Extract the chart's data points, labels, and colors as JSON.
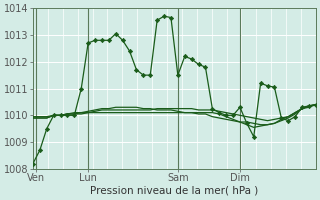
{
  "title": "",
  "xlabel": "Pression niveau de la mer( hPa )",
  "ylabel": "",
  "background_color": "#d4ece6",
  "grid_color": "#ffffff",
  "line_color": "#1a5c1a",
  "ylim": [
    1008,
    1014
  ],
  "yticks": [
    1008,
    1009,
    1010,
    1011,
    1012,
    1013,
    1014
  ],
  "xlim": [
    0,
    41
  ],
  "day_labels": [
    "Ven",
    "Lun",
    "Sam",
    "Dim"
  ],
  "day_positions": [
    0.5,
    8,
    21,
    30
  ],
  "series0_x": [
    0,
    1,
    2,
    3,
    4,
    5,
    6,
    7,
    8,
    9,
    10,
    11,
    12,
    13,
    14,
    15,
    16,
    17,
    18,
    19,
    20,
    21,
    22,
    23,
    24,
    25,
    26,
    27,
    28,
    29,
    30,
    31,
    32,
    33,
    34,
    35,
    36,
    37,
    38,
    39,
    40,
    41
  ],
  "series0_y": [
    1008.2,
    1008.7,
    1009.5,
    1010.0,
    1010.0,
    1010.0,
    1010.0,
    1011.0,
    1012.7,
    1012.8,
    1012.8,
    1012.8,
    1013.05,
    1012.8,
    1012.4,
    1011.7,
    1011.5,
    1011.5,
    1013.55,
    1013.7,
    1013.65,
    1011.5,
    1012.2,
    1012.1,
    1011.9,
    1011.8,
    1010.25,
    1010.1,
    1010.0,
    1010.0,
    1010.3,
    1009.7,
    1009.2,
    1011.2,
    1011.1,
    1011.05,
    1009.9,
    1009.8,
    1009.95,
    1010.3,
    1010.35,
    1010.4
  ],
  "series1_y": [
    1009.95,
    1009.95,
    1009.95,
    1010.0,
    1010.0,
    1010.05,
    1010.05,
    1010.05,
    1010.1,
    1010.15,
    1010.2,
    1010.2,
    1010.2,
    1010.2,
    1010.2,
    1010.2,
    1010.2,
    1010.2,
    1010.25,
    1010.25,
    1010.25,
    1010.25,
    1010.25,
    1010.25,
    1010.2,
    1010.2,
    1010.2,
    1010.15,
    1010.1,
    1010.05,
    1010.0,
    1009.95,
    1009.9,
    1009.85,
    1009.8,
    1009.85,
    1009.9,
    1009.95,
    1010.1,
    1010.25,
    1010.3,
    1010.4
  ],
  "series2_y": [
    1009.9,
    1009.9,
    1009.9,
    1010.0,
    1010.0,
    1010.05,
    1010.1,
    1010.1,
    1010.15,
    1010.2,
    1010.25,
    1010.25,
    1010.3,
    1010.3,
    1010.3,
    1010.3,
    1010.25,
    1010.25,
    1010.2,
    1010.2,
    1010.2,
    1010.15,
    1010.1,
    1010.1,
    1010.05,
    1010.05,
    1009.95,
    1009.9,
    1009.85,
    1009.8,
    1009.75,
    1009.75,
    1009.7,
    1009.65,
    1009.65,
    1009.7,
    1009.8,
    1009.9,
    1010.05,
    1010.25,
    1010.35,
    1010.4
  ],
  "series3_y": [
    1009.9,
    1009.9,
    1009.9,
    1010.0,
    1010.0,
    1010.05,
    1010.05,
    1010.1,
    1010.1,
    1010.1,
    1010.1,
    1010.1,
    1010.1,
    1010.1,
    1010.1,
    1010.1,
    1010.1,
    1010.1,
    1010.1,
    1010.1,
    1010.1,
    1010.1,
    1010.1,
    1010.1,
    1010.1,
    1010.1,
    1010.1,
    1010.05,
    1009.95,
    1009.85,
    1009.75,
    1009.65,
    1009.55,
    1009.6,
    1009.65,
    1009.7,
    1009.85,
    1009.95,
    1010.1,
    1010.25,
    1010.35,
    1010.4
  ]
}
